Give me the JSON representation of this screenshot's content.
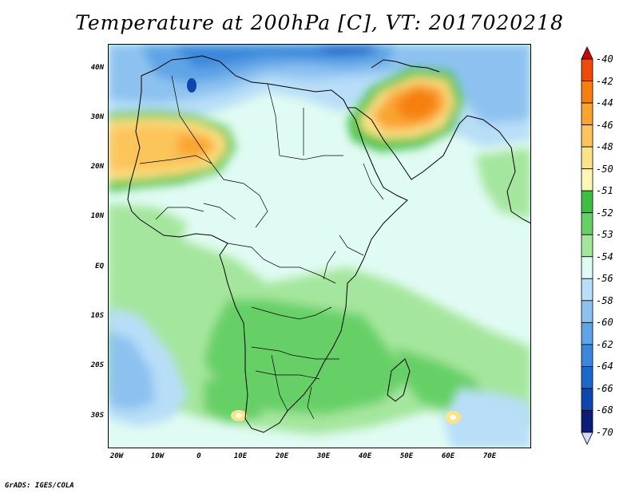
{
  "title": "Temperature at 200hPa [C], VT: 2017020218",
  "credit": "GrADS: IGES/COLA",
  "map": {
    "lat_ticks": [
      "40N",
      "30N",
      "20N",
      "10N",
      "EQ",
      "10S",
      "20S",
      "30S"
    ],
    "lon_ticks": [
      "20W",
      "10W",
      "0",
      "10E",
      "20E",
      "30E",
      "40E",
      "50E",
      "60E",
      "70E"
    ]
  },
  "colorbar": {
    "labels": [
      "-40",
      "-42",
      "-44",
      "-46",
      "-48",
      "-50",
      "-51",
      "-52",
      "-53",
      "-54",
      "-56",
      "-58",
      "-60",
      "-62",
      "-64",
      "-66",
      "-68",
      "-70"
    ],
    "colors": [
      "#d51a0a",
      "#f04a08",
      "#f67f10",
      "#faa430",
      "#fcc55a",
      "#fde387",
      "#fdf6b4",
      "#3cbf43",
      "#66d066",
      "#a4e69d",
      "#e0fbf3",
      "#b8def8",
      "#8dc2f0",
      "#5fa4e6",
      "#3a87dc",
      "#1d68cc",
      "#0d46ae",
      "#0a1d7a"
    ],
    "top_arrow_color": "#c40a0a",
    "bottom_arrow_color": "#d8d8f8"
  },
  "palette": {
    "background_field": "#e0fbf3",
    "frame": "#000000"
  }
}
